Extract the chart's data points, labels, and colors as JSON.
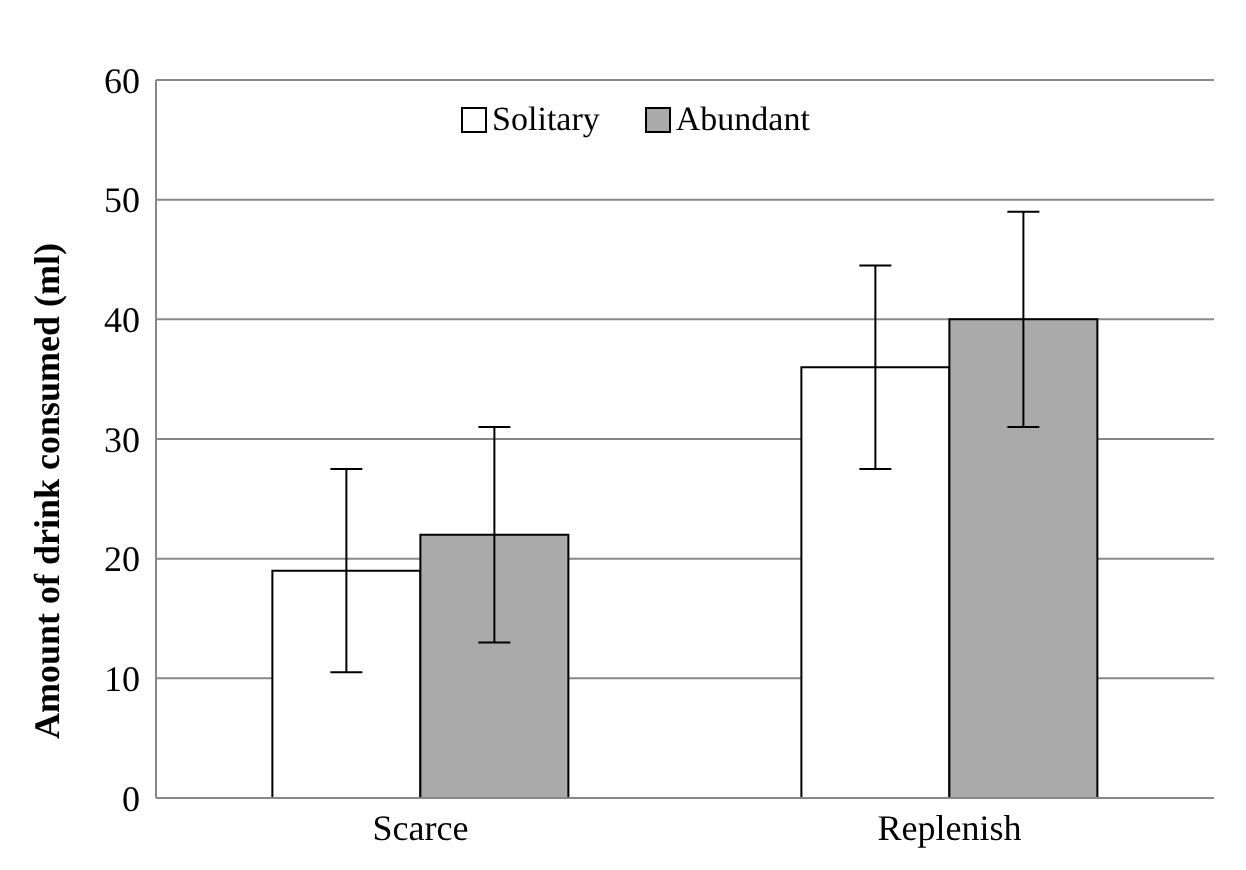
{
  "chart_data": {
    "type": "bar",
    "ylabel": "Amount of drink consumed (ml)",
    "categories": [
      "Scarce",
      "Replenish"
    ],
    "series": [
      {
        "name": "Solitary",
        "color": "#ffffff",
        "values": [
          19,
          36
        ],
        "errors": [
          8.5,
          8.5
        ]
      },
      {
        "name": "Abundant",
        "color": "#aaaaaa",
        "values": [
          22,
          40
        ],
        "errors": [
          9,
          9
        ]
      }
    ],
    "ylim": [
      0,
      60
    ],
    "yticks": [
      0,
      10,
      20,
      30,
      40,
      50,
      60
    ],
    "grid": "y",
    "legend": "top"
  }
}
